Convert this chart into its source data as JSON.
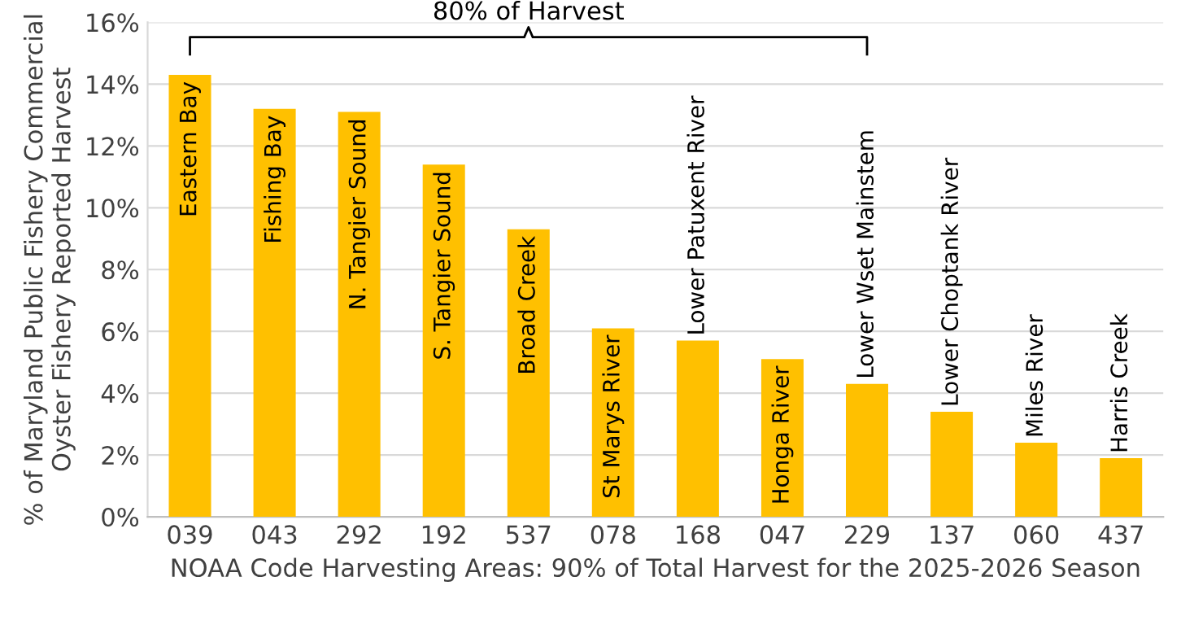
{
  "chart_data": {
    "type": "bar",
    "xlabel": "NOAA Code Harvesting Areas: 90% of Total Harvest for the 2025-2026 Season",
    "ylabel": "% of Maryland Public Fishery Commercial\nOyster Fishery Reported Harvest",
    "categories": [
      "039",
      "043",
      "292",
      "192",
      "537",
      "078",
      "168",
      "047",
      "229",
      "137",
      "060",
      "437"
    ],
    "values": [
      14.3,
      13.2,
      13.1,
      11.4,
      9.3,
      6.1,
      5.7,
      5.1,
      4.3,
      3.4,
      2.4,
      1.9
    ],
    "color": "#ffc000",
    "ylim": [
      0,
      16
    ],
    "yticks": [
      {
        "value": 0,
        "label": "0%"
      },
      {
        "value": 2,
        "label": "2%"
      },
      {
        "value": 4,
        "label": "4%"
      },
      {
        "value": 6,
        "label": "6%"
      },
      {
        "value": 8,
        "label": "8%"
      },
      {
        "value": 10,
        "label": "10%"
      },
      {
        "value": 12,
        "label": "12%"
      },
      {
        "value": 14,
        "label": "14%"
      },
      {
        "value": 16,
        "label": "16%"
      }
    ],
    "grid": "y",
    "annotations": [
      "80% of Harvest",
      {
        "text": "Eastern Bay",
        "x": "039",
        "y": 14.3
      },
      {
        "text": "Fishing Bay",
        "x": "043",
        "y": 13.2
      },
      {
        "text": "N. Tangier Sound",
        "x": "292",
        "y": 13.1
      },
      {
        "text": "S. Tangier Sound",
        "x": "192",
        "y": 11.4
      },
      {
        "text": "Broad Creek",
        "x": "537",
        "y": 9.3
      },
      {
        "text": "St Marys River",
        "x": "078",
        "y": 6.1
      },
      {
        "text": "Lower Patuxent River",
        "x": "168",
        "y": 5.7
      },
      {
        "text": "Honga River",
        "x": "047",
        "y": 5.1
      },
      {
        "text": "Lower Wset Mainstem",
        "x": "229",
        "y": 4.3
      },
      {
        "text": "Lower Choptank River",
        "x": "137",
        "y": 3.4
      },
      {
        "text": "Miles River",
        "x": "060",
        "y": 2.4
      },
      {
        "text": "Harris Creek",
        "x": "437",
        "y": 1.9
      }
    ]
  }
}
